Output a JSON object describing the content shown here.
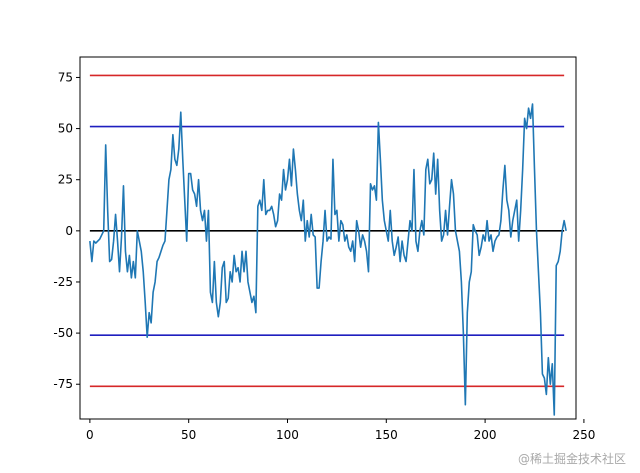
{
  "chart_data": {
    "type": "line",
    "xlim": [
      -5,
      246
    ],
    "ylim": [
      -92,
      85
    ],
    "xticks": [
      0,
      50,
      100,
      150,
      200,
      250
    ],
    "yticks": [
      75,
      50,
      25,
      0,
      -25,
      -50,
      -75
    ],
    "hlines": [
      {
        "y": 76,
        "color": "#d62728",
        "xrange": [
          0,
          240
        ]
      },
      {
        "y": 51,
        "color": "#1f1fbf",
        "xrange": [
          0,
          240
        ]
      },
      {
        "y": 0,
        "color": "#000000",
        "xrange": [
          0,
          240
        ]
      },
      {
        "y": -51,
        "color": "#1f1fbf",
        "xrange": [
          0,
          240
        ]
      },
      {
        "y": -76,
        "color": "#d62728",
        "xrange": [
          0,
          240
        ]
      }
    ],
    "series": [
      {
        "color": "#1f77b4",
        "points": [
          [
            0,
            -5
          ],
          [
            1,
            -15
          ],
          [
            2,
            -5
          ],
          [
            3,
            -6
          ],
          [
            4,
            -5
          ],
          [
            5,
            -4
          ],
          [
            6,
            -2
          ],
          [
            7,
            0
          ],
          [
            8,
            42
          ],
          [
            9,
            10
          ],
          [
            10,
            -15
          ],
          [
            11,
            -14
          ],
          [
            12,
            -5
          ],
          [
            13,
            8
          ],
          [
            14,
            -5
          ],
          [
            15,
            -20
          ],
          [
            16,
            -3
          ],
          [
            17,
            22
          ],
          [
            18,
            -10
          ],
          [
            19,
            -20
          ],
          [
            20,
            -12
          ],
          [
            21,
            -23
          ],
          [
            22,
            -15
          ],
          [
            23,
            -23
          ],
          [
            24,
            0
          ],
          [
            25,
            -5
          ],
          [
            26,
            -10
          ],
          [
            27,
            -20
          ],
          [
            28,
            -35
          ],
          [
            29,
            -52
          ],
          [
            30,
            -40
          ],
          [
            31,
            -45
          ],
          [
            32,
            -30
          ],
          [
            33,
            -25
          ],
          [
            34,
            -15
          ],
          [
            35,
            -13
          ],
          [
            36,
            -10
          ],
          [
            37,
            -7
          ],
          [
            38,
            -5
          ],
          [
            39,
            10
          ],
          [
            40,
            25
          ],
          [
            41,
            30
          ],
          [
            42,
            47
          ],
          [
            43,
            35
          ],
          [
            44,
            32
          ],
          [
            45,
            40
          ],
          [
            46,
            58
          ],
          [
            47,
            35
          ],
          [
            48,
            15
          ],
          [
            49,
            -5
          ],
          [
            50,
            28
          ],
          [
            51,
            28
          ],
          [
            52,
            20
          ],
          [
            53,
            18
          ],
          [
            54,
            12
          ],
          [
            55,
            25
          ],
          [
            56,
            10
          ],
          [
            57,
            5
          ],
          [
            58,
            10
          ],
          [
            59,
            -5
          ],
          [
            60,
            10
          ],
          [
            61,
            -30
          ],
          [
            62,
            -35
          ],
          [
            63,
            -15
          ],
          [
            64,
            -35
          ],
          [
            65,
            -42
          ],
          [
            66,
            -35
          ],
          [
            67,
            -18
          ],
          [
            68,
            -15
          ],
          [
            69,
            -35
          ],
          [
            70,
            -33
          ],
          [
            71,
            -20
          ],
          [
            72,
            -25
          ],
          [
            73,
            -12
          ],
          [
            74,
            -20
          ],
          [
            75,
            -18
          ],
          [
            76,
            -25
          ],
          [
            77,
            -10
          ],
          [
            78,
            -20
          ],
          [
            79,
            -10
          ],
          [
            80,
            -25
          ],
          [
            81,
            -30
          ],
          [
            82,
            -35
          ],
          [
            83,
            -32
          ],
          [
            84,
            -40
          ],
          [
            85,
            12
          ],
          [
            86,
            15
          ],
          [
            87,
            10
          ],
          [
            88,
            25
          ],
          [
            89,
            8
          ],
          [
            90,
            10
          ],
          [
            91,
            10
          ],
          [
            92,
            12
          ],
          [
            93,
            8
          ],
          [
            94,
            2
          ],
          [
            95,
            5
          ],
          [
            96,
            18
          ],
          [
            97,
            15
          ],
          [
            98,
            30
          ],
          [
            99,
            20
          ],
          [
            100,
            25
          ],
          [
            101,
            35
          ],
          [
            102,
            22
          ],
          [
            103,
            40
          ],
          [
            104,
            30
          ],
          [
            105,
            18
          ],
          [
            106,
            10
          ],
          [
            107,
            5
          ],
          [
            108,
            15
          ],
          [
            109,
            -5
          ],
          [
            110,
            5
          ],
          [
            111,
            -3
          ],
          [
            112,
            8
          ],
          [
            113,
            -2
          ],
          [
            114,
            -3
          ],
          [
            115,
            -28
          ],
          [
            116,
            -28
          ],
          [
            117,
            -15
          ],
          [
            118,
            -5
          ],
          [
            119,
            10
          ],
          [
            120,
            -5
          ],
          [
            121,
            -3
          ],
          [
            122,
            -4
          ],
          [
            123,
            35
          ],
          [
            124,
            8
          ],
          [
            125,
            10
          ],
          [
            126,
            -5
          ],
          [
            127,
            5
          ],
          [
            128,
            3
          ],
          [
            129,
            -5
          ],
          [
            130,
            -2
          ],
          [
            131,
            -8
          ],
          [
            132,
            -10
          ],
          [
            133,
            -5
          ],
          [
            134,
            -15
          ],
          [
            135,
            5
          ],
          [
            136,
            0
          ],
          [
            137,
            -8
          ],
          [
            138,
            -2
          ],
          [
            139,
            -5
          ],
          [
            140,
            -10
          ],
          [
            141,
            -20
          ],
          [
            142,
            23
          ],
          [
            143,
            20
          ],
          [
            144,
            22
          ],
          [
            145,
            15
          ],
          [
            146,
            53
          ],
          [
            147,
            35
          ],
          [
            148,
            15
          ],
          [
            149,
            5
          ],
          [
            150,
            0
          ],
          [
            151,
            -5
          ],
          [
            152,
            10
          ],
          [
            153,
            -5
          ],
          [
            154,
            -12
          ],
          [
            155,
            -8
          ],
          [
            156,
            -3
          ],
          [
            157,
            -15
          ],
          [
            158,
            -5
          ],
          [
            159,
            -12
          ],
          [
            160,
            -15
          ],
          [
            161,
            -5
          ],
          [
            162,
            5
          ],
          [
            163,
            0
          ],
          [
            164,
            30
          ],
          [
            165,
            -5
          ],
          [
            166,
            -10
          ],
          [
            167,
            0
          ],
          [
            168,
            5
          ],
          [
            169,
            -2
          ],
          [
            170,
            30
          ],
          [
            171,
            35
          ],
          [
            172,
            23
          ],
          [
            173,
            25
          ],
          [
            174,
            38
          ],
          [
            175,
            18
          ],
          [
            176,
            35
          ],
          [
            177,
            10
          ],
          [
            178,
            -5
          ],
          [
            179,
            -2
          ],
          [
            180,
            10
          ],
          [
            181,
            -2
          ],
          [
            182,
            12
          ],
          [
            183,
            25
          ],
          [
            184,
            18
          ],
          [
            185,
            0
          ],
          [
            186,
            -5
          ],
          [
            187,
            -10
          ],
          [
            188,
            -25
          ],
          [
            189,
            -50
          ],
          [
            190,
            -85
          ],
          [
            191,
            -40
          ],
          [
            192,
            -25
          ],
          [
            193,
            -20
          ],
          [
            194,
            3
          ],
          [
            195,
            0
          ],
          [
            196,
            -2
          ],
          [
            197,
            -12
          ],
          [
            198,
            -8
          ],
          [
            199,
            -2
          ],
          [
            200,
            -5
          ],
          [
            201,
            5
          ],
          [
            202,
            -5
          ],
          [
            203,
            -2
          ],
          [
            204,
            -10
          ],
          [
            205,
            -5
          ],
          [
            206,
            -3
          ],
          [
            207,
            -2
          ],
          [
            208,
            5
          ],
          [
            209,
            20
          ],
          [
            210,
            32
          ],
          [
            211,
            15
          ],
          [
            212,
            10
          ],
          [
            213,
            -3
          ],
          [
            214,
            5
          ],
          [
            215,
            10
          ],
          [
            216,
            15
          ],
          [
            217,
            -5
          ],
          [
            218,
            10
          ],
          [
            219,
            30
          ],
          [
            220,
            55
          ],
          [
            221,
            50
          ],
          [
            222,
            60
          ],
          [
            223,
            55
          ],
          [
            224,
            62
          ],
          [
            225,
            30
          ],
          [
            226,
            0
          ],
          [
            227,
            -20
          ],
          [
            228,
            -40
          ],
          [
            229,
            -70
          ],
          [
            230,
            -72
          ],
          [
            231,
            -80
          ],
          [
            232,
            -62
          ],
          [
            233,
            -75
          ],
          [
            234,
            -65
          ],
          [
            235,
            -90
          ],
          [
            236,
            -17
          ],
          [
            237,
            -15
          ],
          [
            238,
            -10
          ],
          [
            239,
            0
          ],
          [
            240,
            5
          ],
          [
            241,
            0
          ]
        ]
      }
    ]
  },
  "watermark": "@稀土掘金技术社区"
}
